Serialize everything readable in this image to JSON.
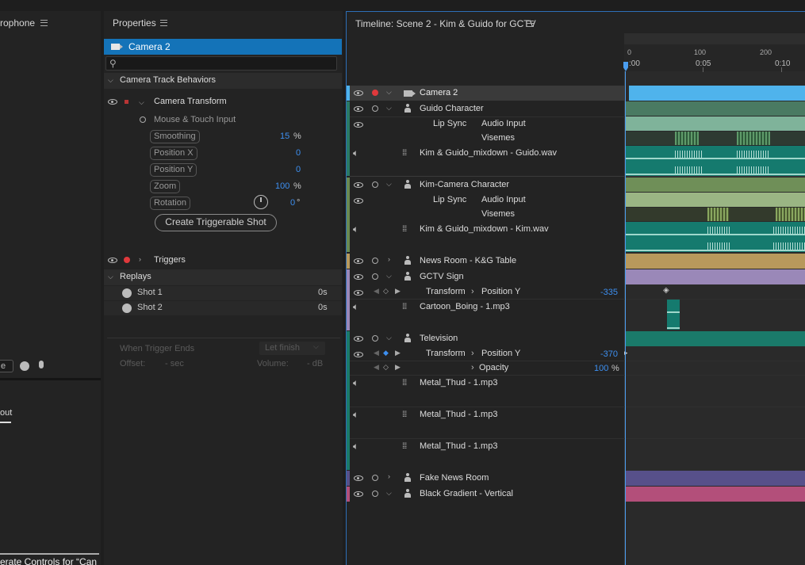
{
  "left_panel": {
    "title_partial": "rophone",
    "input_partial": "e",
    "tab_partial": "out",
    "footer_partial": "erate Controls for “Can"
  },
  "properties": {
    "header": "Properties",
    "selected_item": "Camera 2",
    "search_placeholder": "",
    "section_camera_track": "Camera Track Behaviors",
    "camera_transform": "Camera Transform",
    "mouse_touch": "Mouse & Touch Input",
    "params": [
      {
        "label": "Smoothing",
        "value": "15",
        "unit": "%"
      },
      {
        "label": "Position X",
        "value": "0",
        "unit": ""
      },
      {
        "label": "Position Y",
        "value": "0",
        "unit": ""
      },
      {
        "label": "Zoom",
        "value": "100",
        "unit": "%"
      },
      {
        "label": "Rotation",
        "value": "0",
        "unit": "°"
      }
    ],
    "create_shot_button": "Create Triggerable Shot",
    "triggers": "Triggers",
    "replays_section": "Replays",
    "shots": [
      {
        "label": "Shot 1",
        "time": "0s"
      },
      {
        "label": "Shot 2",
        "time": "0s"
      }
    ],
    "when_trigger_ends_label": "When Trigger Ends",
    "when_trigger_ends_value": "Let finish",
    "offset_label": "Offset:",
    "offset_value": "- sec",
    "volume_label": "Volume:",
    "volume_value": "- dB"
  },
  "timeline": {
    "header": "Timeline: Scene 2 - Kim & Guido for GCTV",
    "ruler_frames": [
      "0",
      "100",
      "200"
    ],
    "ruler_times": [
      ":00",
      "0:05",
      "0:10"
    ],
    "tracks": [
      {
        "name": "Camera 2"
      },
      {
        "name": "Guido Character"
      },
      {
        "name": "Lip Sync",
        "sub1": "Audio Input",
        "sub2": "Visemes"
      },
      {
        "name": "Kim & Guido_mixdown - Guido.wav"
      },
      {
        "name": "Kim-Camera Character"
      },
      {
        "name": "Lip Sync",
        "sub1": "Audio Input",
        "sub2": "Visemes"
      },
      {
        "name": "Kim & Guido_mixdown - Kim.wav"
      },
      {
        "name": "News Room - K&G Table"
      },
      {
        "name": "GCTV Sign"
      },
      {
        "name": "Transform",
        "sub1": "Position Y",
        "value": "-335"
      },
      {
        "name": "Cartoon_Boing - 1.mp3"
      },
      {
        "name": "Television"
      },
      {
        "name": "Transform",
        "sub1": "Position Y",
        "value": "-370"
      },
      {
        "name": "Opacity",
        "value": "100",
        "unit": "%"
      },
      {
        "name": "Metal_Thud - 1.mp3"
      },
      {
        "name": "Metal_Thud - 1.mp3"
      },
      {
        "name": "Metal_Thud - 1.mp3"
      },
      {
        "name": "Fake News Room"
      },
      {
        "name": "Black Gradient - Vertical"
      }
    ],
    "colors": {
      "camera_clip": "#4fb3ec",
      "character": "#4a7a62",
      "lipsync": "#7fb39a",
      "audio": "#157a6e",
      "kim_lipsync": "#9ab584",
      "newsroom": "#b8995c",
      "gctv": "#9a88b8",
      "television": "#1a7a6a",
      "fake_news": "#57508a",
      "gradient": "#b34f7a"
    }
  }
}
